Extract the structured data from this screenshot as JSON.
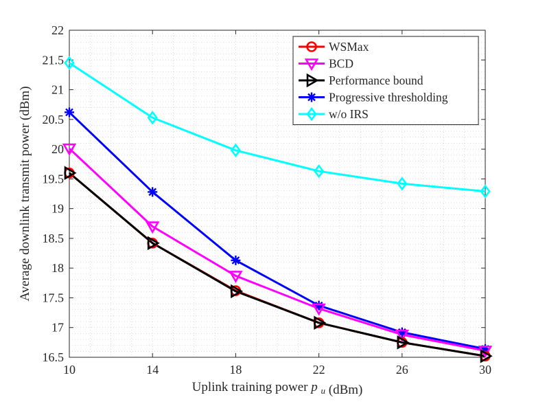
{
  "chart_data": {
    "type": "line",
    "xlabel": "Uplink training power",
    "xlabel_var": "p",
    "xlabel_sub": "u",
    "xlabel_unit": "(dBm)",
    "ylabel": "Average downlink transmit power (dBm)",
    "x": [
      10,
      14,
      18,
      22,
      26,
      30
    ],
    "xlim": [
      10,
      30
    ],
    "ylim": [
      16.5,
      22
    ],
    "xticks": [
      "10",
      "14",
      "18",
      "22",
      "26",
      "30"
    ],
    "yticks": [
      "16.5",
      "17",
      "17.5",
      "18",
      "18.5",
      "19",
      "19.5",
      "20",
      "20.5",
      "21",
      "21.5",
      "22"
    ],
    "grid": "minor dotted",
    "legend_position": "top-right",
    "series": [
      {
        "name": "WSMax",
        "color": "#ff0000",
        "marker": "circle",
        "values": [
          19.6,
          18.42,
          17.62,
          17.08,
          16.75,
          16.52
        ]
      },
      {
        "name": "BCD",
        "color": "#ff00ff",
        "marker": "triangle-down",
        "values": [
          20.01,
          18.7,
          17.87,
          17.32,
          16.88,
          16.61
        ]
      },
      {
        "name": "Performance bound",
        "color": "#000000",
        "marker": "triangle-right",
        "values": [
          19.6,
          18.42,
          17.61,
          17.08,
          16.75,
          16.52
        ]
      },
      {
        "name": "Progressive thresholding",
        "color": "#0000ff",
        "marker": "asterisk",
        "values": [
          20.62,
          19.28,
          18.13,
          17.37,
          16.92,
          16.64
        ]
      },
      {
        "name": "w/o IRS",
        "color": "#00ffff",
        "marker": "diamond",
        "values": [
          21.45,
          20.53,
          19.98,
          19.63,
          19.42,
          19.29
        ]
      }
    ]
  }
}
